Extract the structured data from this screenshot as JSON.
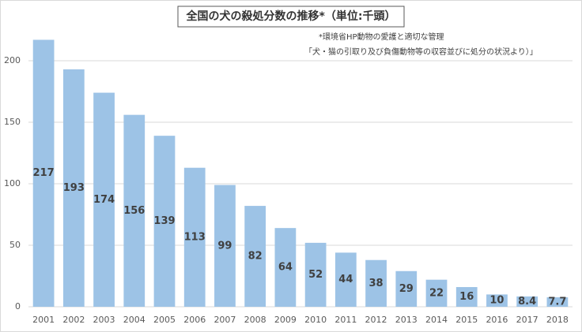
{
  "chart_data": {
    "type": "bar",
    "title": "全国の犬の殺処分数の推移*（単位:千頭）",
    "annotations": [
      "*環境省HP動物の愛護と適切な管理",
      "「犬・猫の引取り及び負傷動物等の収容並びに処分の状況より）」"
    ],
    "categories": [
      "2001",
      "2002",
      "2003",
      "2004",
      "2005",
      "2006",
      "2007",
      "2008",
      "2009",
      "2010",
      "2011",
      "2012",
      "2013",
      "2014",
      "2015",
      "2016",
      "2017",
      "2018"
    ],
    "values": [
      217,
      193,
      174,
      156,
      139,
      113,
      99,
      82,
      64,
      52,
      44,
      38,
      29,
      22,
      16,
      10,
      8.4,
      7.7
    ],
    "color": "#9dc3e6",
    "ylim": [
      0,
      225
    ],
    "yticks": [
      0,
      50,
      100,
      150,
      200
    ],
    "grid": true
  }
}
